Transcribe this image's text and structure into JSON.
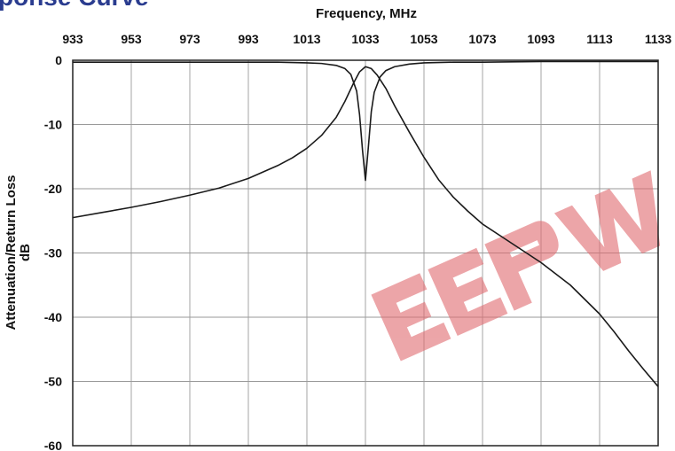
{
  "header": {
    "cut_title": "ponse Curve"
  },
  "chart_data": {
    "type": "line",
    "title": "",
    "xlabel": "Frequency, MHz",
    "ylabel": [
      "Attenuation/Return Loss",
      "dB"
    ],
    "x_ticks": [
      933,
      953,
      973,
      993,
      1013,
      1033,
      1053,
      1073,
      1093,
      1113,
      1133
    ],
    "y_ticks": [
      0,
      -10,
      -20,
      -30,
      -40,
      -50,
      -60
    ],
    "xlim": [
      933,
      1133
    ],
    "ylim": [
      -60,
      0
    ],
    "grid": true,
    "legend": "none",
    "line_color": "#1a1a1a",
    "watermark_color": "#e06a70",
    "series": [
      {
        "x": [
          933,
          943,
          953,
          963,
          973,
          983,
          993,
          1003,
          1008,
          1013,
          1018,
          1023,
          1026,
          1029,
          1031,
          1033,
          1035,
          1037,
          1040,
          1043,
          1048,
          1053,
          1058,
          1063,
          1068,
          1073,
          1083,
          1093,
          1103,
          1113,
          1118,
          1123,
          1128,
          1133
        ],
        "y": [
          -24.5,
          -23.7,
          -22.9,
          -22.0,
          -21.0,
          -19.9,
          -18.4,
          -16.4,
          -15.2,
          -13.7,
          -11.7,
          -8.9,
          -6.4,
          -3.5,
          -1.8,
          -1.0,
          -1.3,
          -2.3,
          -4.4,
          -7.1,
          -11.2,
          -15.1,
          -18.6,
          -21.3,
          -23.5,
          -25.5,
          -28.5,
          -31.5,
          -35.0,
          -39.5,
          -42.3,
          -45.3,
          -48.1,
          -50.8
        ]
      },
      {
        "x": [
          933,
          953,
          973,
          993,
          1003,
          1013,
          1018,
          1023,
          1026,
          1028,
          1030,
          1031,
          1032,
          1033,
          1034,
          1035,
          1036,
          1038,
          1040,
          1043,
          1048,
          1053,
          1063,
          1073,
          1093,
          1113,
          1133
        ],
        "y": [
          -0.3,
          -0.3,
          -0.3,
          -0.3,
          -0.3,
          -0.4,
          -0.5,
          -0.8,
          -1.3,
          -2.2,
          -4.8,
          -8.5,
          -14.0,
          -18.7,
          -13.5,
          -8.0,
          -5.0,
          -2.6,
          -1.6,
          -1.0,
          -0.6,
          -0.4,
          -0.3,
          -0.3,
          -0.2,
          -0.2,
          -0.2
        ]
      }
    ]
  }
}
